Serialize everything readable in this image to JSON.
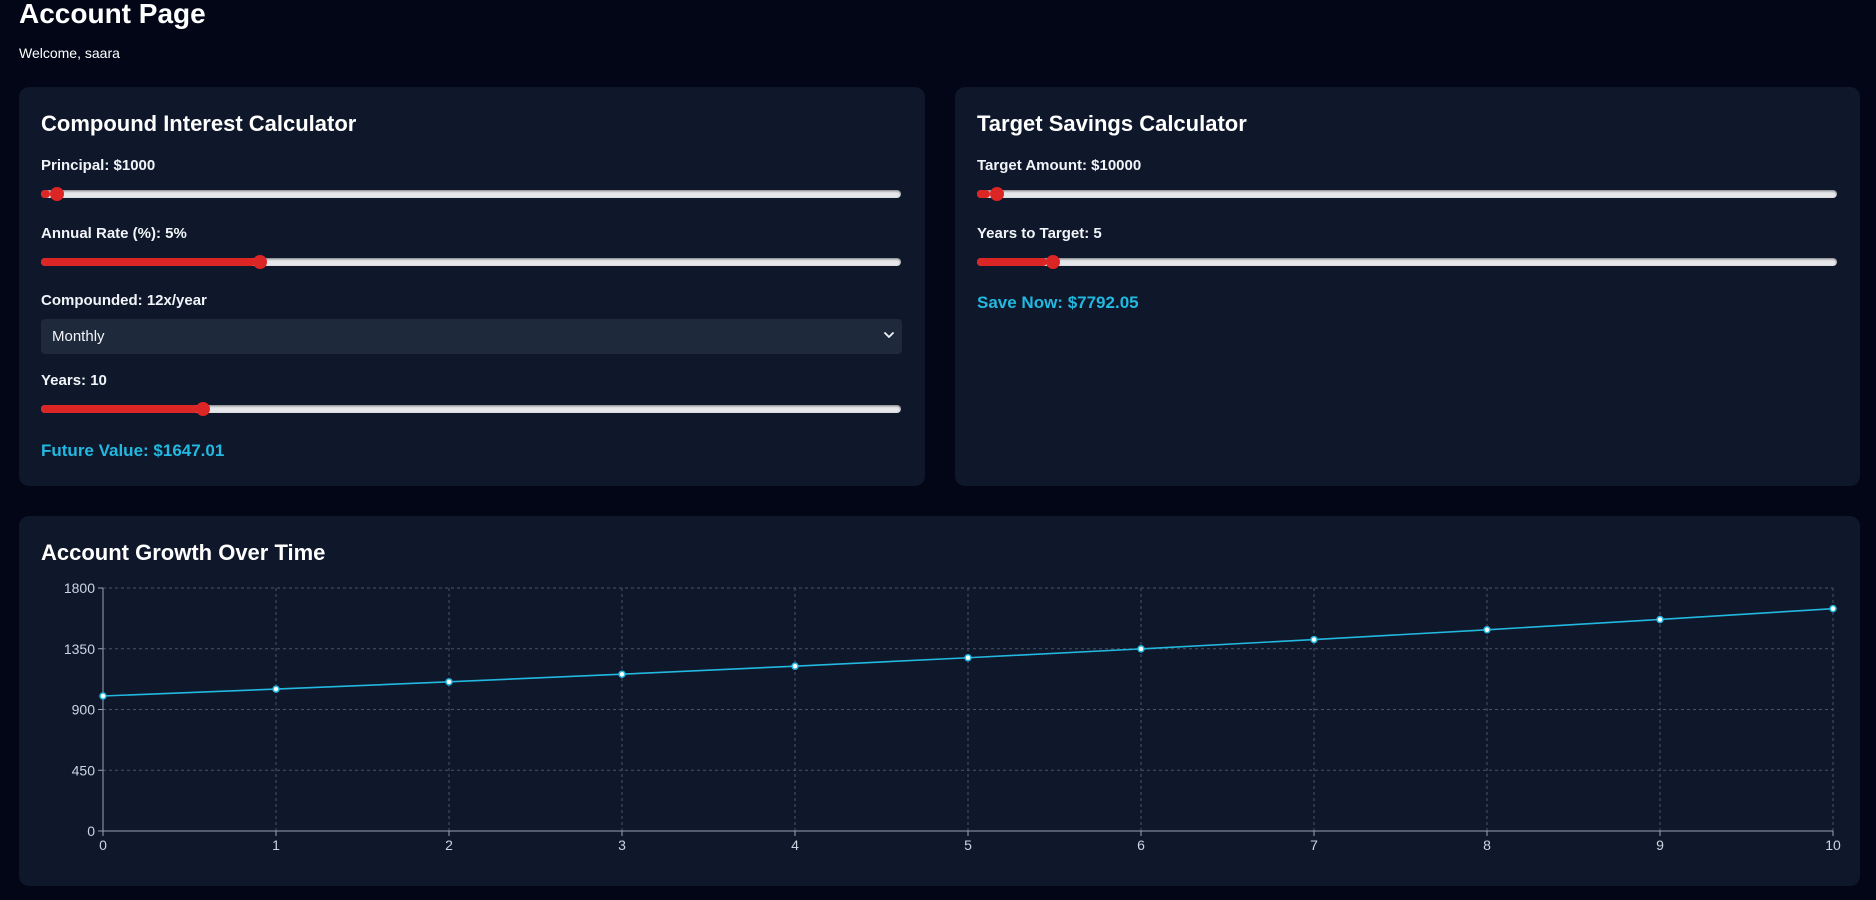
{
  "page": {
    "title": "Account Page",
    "welcome": "Welcome, saara"
  },
  "compound": {
    "title": "Compound Interest Calculator",
    "principal_label": "Principal: $1000",
    "principal_fraction": 0.0101,
    "rate_label": "Annual Rate (%): 5%",
    "rate_fraction": 0.25,
    "compounded_label": "Compounded: 12x/year",
    "compound_select": {
      "value": "Monthly"
    },
    "years_label": "Years: 10",
    "years_fraction": 0.1837,
    "result": "Future Value: $1647.01"
  },
  "target": {
    "title": "Target Savings Calculator",
    "amount_label": "Target Amount: $10000",
    "amount_fraction": 0.0152,
    "years_label": "Years to Target: 5",
    "years_fraction": 0.0816,
    "result": "Save Now: $7792.05"
  },
  "chart": {
    "title": "Account Growth Over Time"
  },
  "colors": {
    "accent": "#22b8e0",
    "slider": "#dc2626",
    "card": "#0f172a",
    "background": "#020617"
  },
  "chart_data": {
    "type": "line",
    "x": [
      0,
      1,
      2,
      3,
      4,
      5,
      6,
      7,
      8,
      9,
      10
    ],
    "series": [
      {
        "values": [
          1000,
          1051.16,
          1104.94,
          1161.47,
          1220.9,
          1283.36,
          1349.02,
          1418.04,
          1490.59,
          1566.85,
          1647.01
        ]
      }
    ],
    "xlim": [
      0,
      10
    ],
    "ylim": [
      0,
      1800
    ],
    "yticks": [
      0,
      450,
      900,
      1350,
      1800
    ],
    "xticks": [
      0,
      1,
      2,
      3,
      4,
      5,
      6,
      7,
      8,
      9,
      10
    ],
    "grid": true,
    "legend": "none",
    "line_color": "#22b8e0"
  }
}
